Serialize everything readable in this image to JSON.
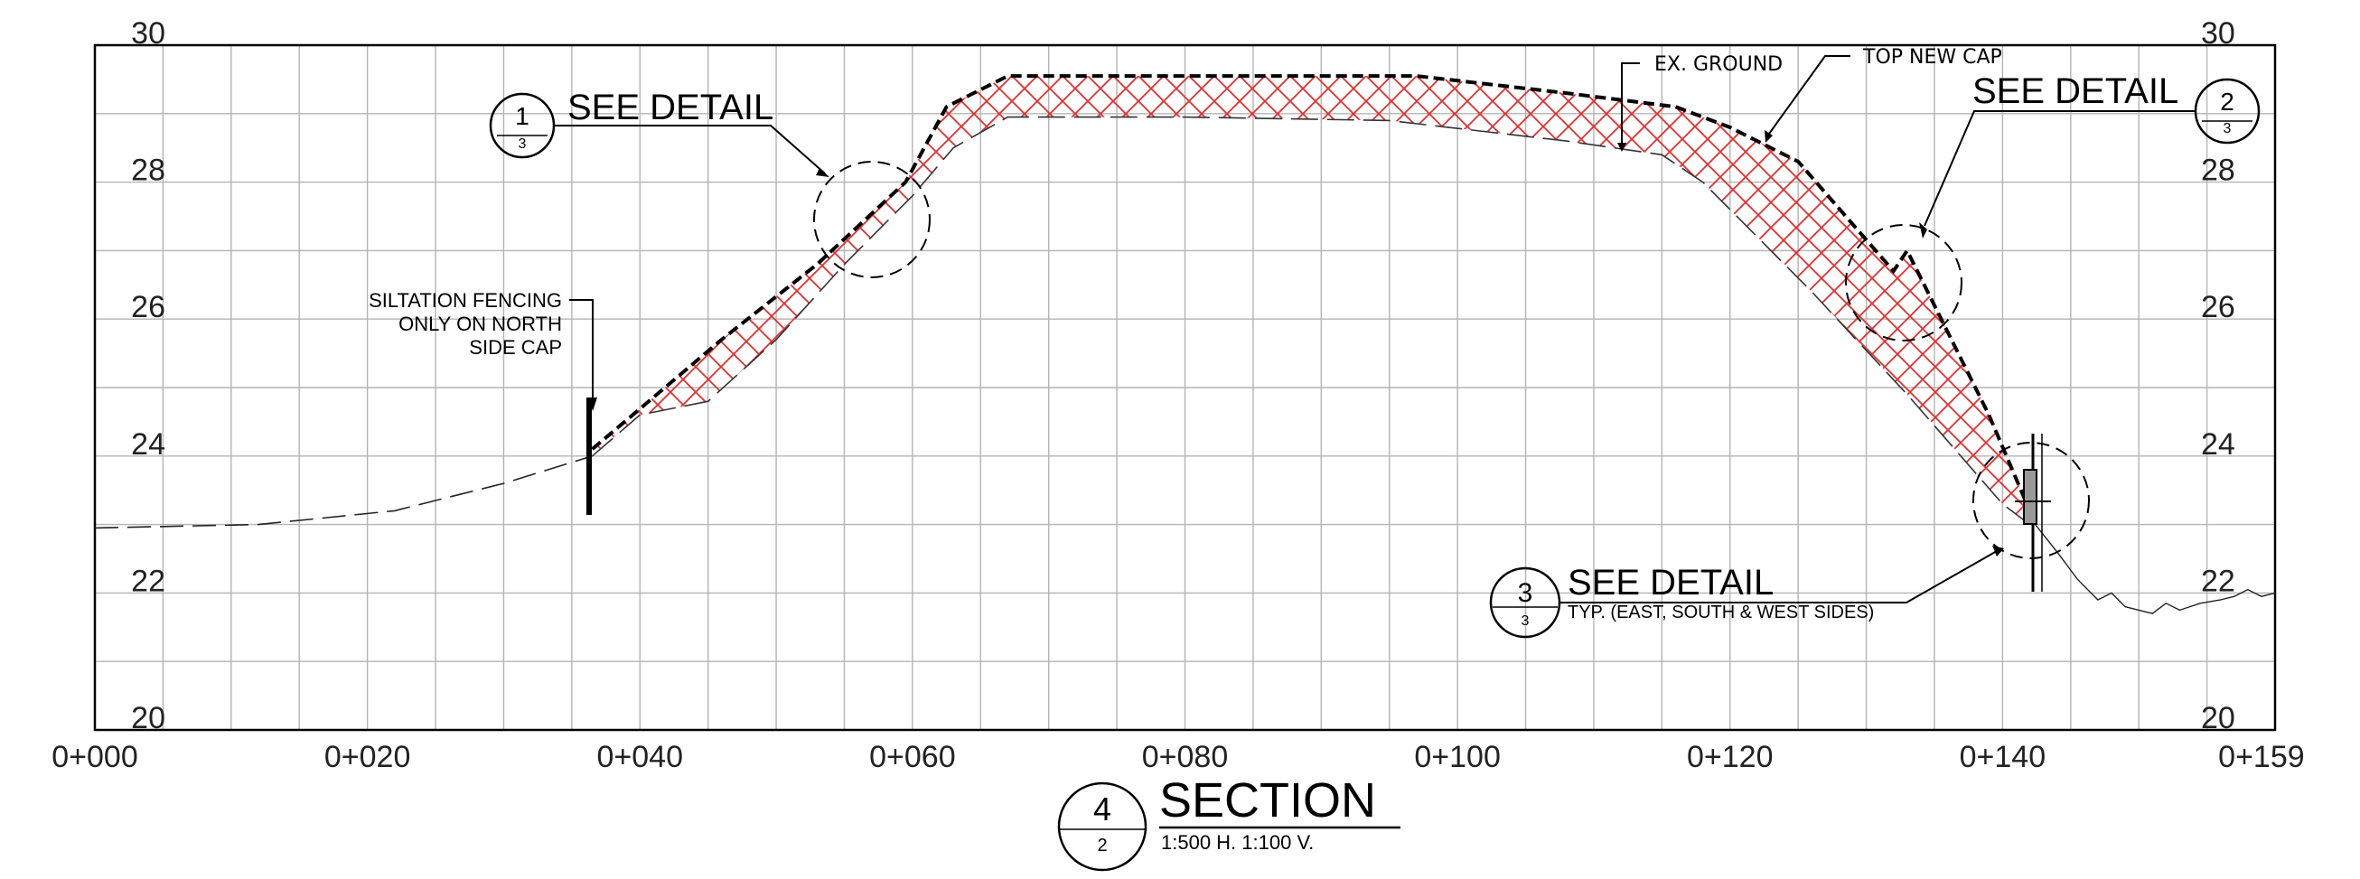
{
  "chart_data": {
    "type": "line",
    "title": "SECTION",
    "x_ticks": [
      "0+000",
      "0+020",
      "0+040",
      "0+060",
      "0+080",
      "0+100",
      "0+120",
      "0+140",
      "0+159"
    ],
    "y_ticks_left": [
      "30",
      "28",
      "26",
      "24",
      "22",
      "20"
    ],
    "y_ticks_right": [
      "30",
      "28",
      "26",
      "24",
      "22",
      "20"
    ],
    "xlim": [
      0,
      160
    ],
    "ylim": [
      20,
      30
    ],
    "grid": true,
    "series": [
      {
        "name": "TOP NEW CAP",
        "style": "dashed-bold",
        "x": [
          36.5,
          46,
          53,
          59.5,
          62.5,
          67,
          97,
          108,
          116,
          120,
          125,
          132,
          133,
          139,
          142
        ],
        "y": [
          24.1,
          25.7,
          26.8,
          28.0,
          29.1,
          29.55,
          29.55,
          29.3,
          29.1,
          28.8,
          28.3,
          26.7,
          27.0,
          24.6,
          23.2
        ]
      },
      {
        "name": "EX. GROUND",
        "style": "dashed-thin",
        "x": [
          0,
          12,
          22,
          30,
          36.5,
          40,
          45,
          50,
          55,
          60,
          63,
          67,
          80,
          95,
          108,
          115,
          118,
          120,
          126,
          133,
          140,
          142,
          146
        ],
        "y": [
          22.95,
          23.0,
          23.2,
          23.6,
          24.0,
          24.6,
          24.8,
          25.7,
          26.8,
          27.8,
          28.5,
          28.95,
          28.95,
          28.9,
          28.6,
          28.4,
          28.0,
          27.6,
          26.4,
          24.9,
          23.3,
          23.0,
          22.1
        ]
      }
    ],
    "annotations": [
      {
        "id": "note-1",
        "marker_top": "1",
        "marker_bottom": "3",
        "text": "SEE DETAIL"
      },
      {
        "id": "note-2",
        "marker_top": "2",
        "marker_bottom": "3",
        "text": "SEE DETAIL"
      },
      {
        "id": "note-3",
        "marker_top": "3",
        "marker_bottom": "3",
        "text": "SEE DETAIL",
        "subtext": "TYP. (EAST, SOUTH & WEST SIDES)"
      },
      {
        "id": "ex-ground-label",
        "text": "EX. GROUND"
      },
      {
        "id": "top-cap-label",
        "text": "TOP NEW CAP"
      },
      {
        "id": "fence-note",
        "lines": [
          "SILTATION FENCING",
          "ONLY ON NORTH",
          "SIDE CAP"
        ]
      }
    ],
    "section_title": {
      "marker_top": "4",
      "marker_bottom": "2",
      "title": "SECTION",
      "scale": "1:500 H. 1:100 V."
    },
    "colors": {
      "grid": "#b4b4b4",
      "hatch": "#e03030",
      "lines": "#000000"
    }
  }
}
